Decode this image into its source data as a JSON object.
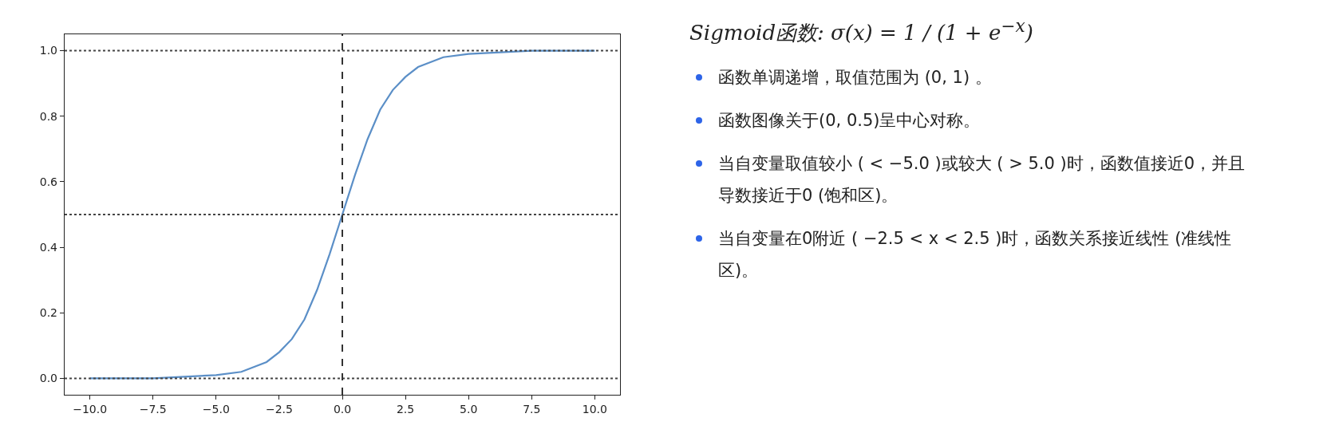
{
  "chart_data": {
    "type": "line",
    "x": [
      -10,
      -7.5,
      -5,
      -4,
      -3,
      -2.5,
      -2,
      -1.5,
      -1,
      -0.5,
      0,
      0.5,
      1,
      1.5,
      2,
      2.5,
      3,
      4,
      5,
      7.5,
      10
    ],
    "series": [
      {
        "color": "#5b8fc7",
        "values": [
          0,
          0,
          0.01,
          0.02,
          0.05,
          0.08,
          0.12,
          0.18,
          0.27,
          0.38,
          0.5,
          0.62,
          0.73,
          0.82,
          0.88,
          0.92,
          0.95,
          0.98,
          0.99,
          1,
          1
        ]
      }
    ],
    "xlim": [
      -11,
      11
    ],
    "xticks": [
      {
        "value": -10,
        "label": "−10.0"
      },
      {
        "value": -7.5,
        "label": "−7.5"
      },
      {
        "value": -5,
        "label": "−5.0"
      },
      {
        "value": -2.5,
        "label": "−2.5"
      },
      {
        "value": 0,
        "label": "0.0"
      },
      {
        "value": 2.5,
        "label": "2.5"
      },
      {
        "value": 5,
        "label": "5.0"
      },
      {
        "value": 7.5,
        "label": "7.5"
      },
      {
        "value": 10,
        "label": "10.0"
      }
    ],
    "ylim": [
      -0.05,
      1.05
    ],
    "yticks": [
      {
        "value": 0,
        "label": "0.0"
      },
      {
        "value": 0.2,
        "label": "0.2"
      },
      {
        "value": 0.4,
        "label": "0.4"
      },
      {
        "value": 0.6,
        "label": "0.6"
      },
      {
        "value": 0.8,
        "label": "0.8"
      },
      {
        "value": 1,
        "label": "1.0"
      }
    ],
    "ref_lines": [
      {
        "axis": "y",
        "value": 0,
        "color": "#444444",
        "line_style": "dotted"
      },
      {
        "axis": "y",
        "value": 0.5,
        "color": "#444444",
        "line_style": "dotted"
      },
      {
        "axis": "y",
        "value": 1,
        "color": "#444444",
        "line_style": "dotted"
      },
      {
        "axis": "x",
        "value": 0,
        "color": "#333333",
        "line_style": "dashed"
      }
    ],
    "grid": false,
    "marker": "none",
    "line_style": "solid",
    "annotations": [
      "Sigmoid函数: σ(x) = 1 / (1 + e$^{−x}$)",
      "函数单调递增，取值范围为 (0, 1) 。",
      "函数图像关于(0, 0.5)呈中心对称。",
      "当自变量取值较小 ( < −5.0 )或较大 ( > 5.0 )时，函数值接近0，并且导数接近于0 (饱和区)。",
      "当自变量在0附近 ( −2.5 < x < 2.5 )时，函数关系接近线性 (准线性区)。"
    ]
  }
}
